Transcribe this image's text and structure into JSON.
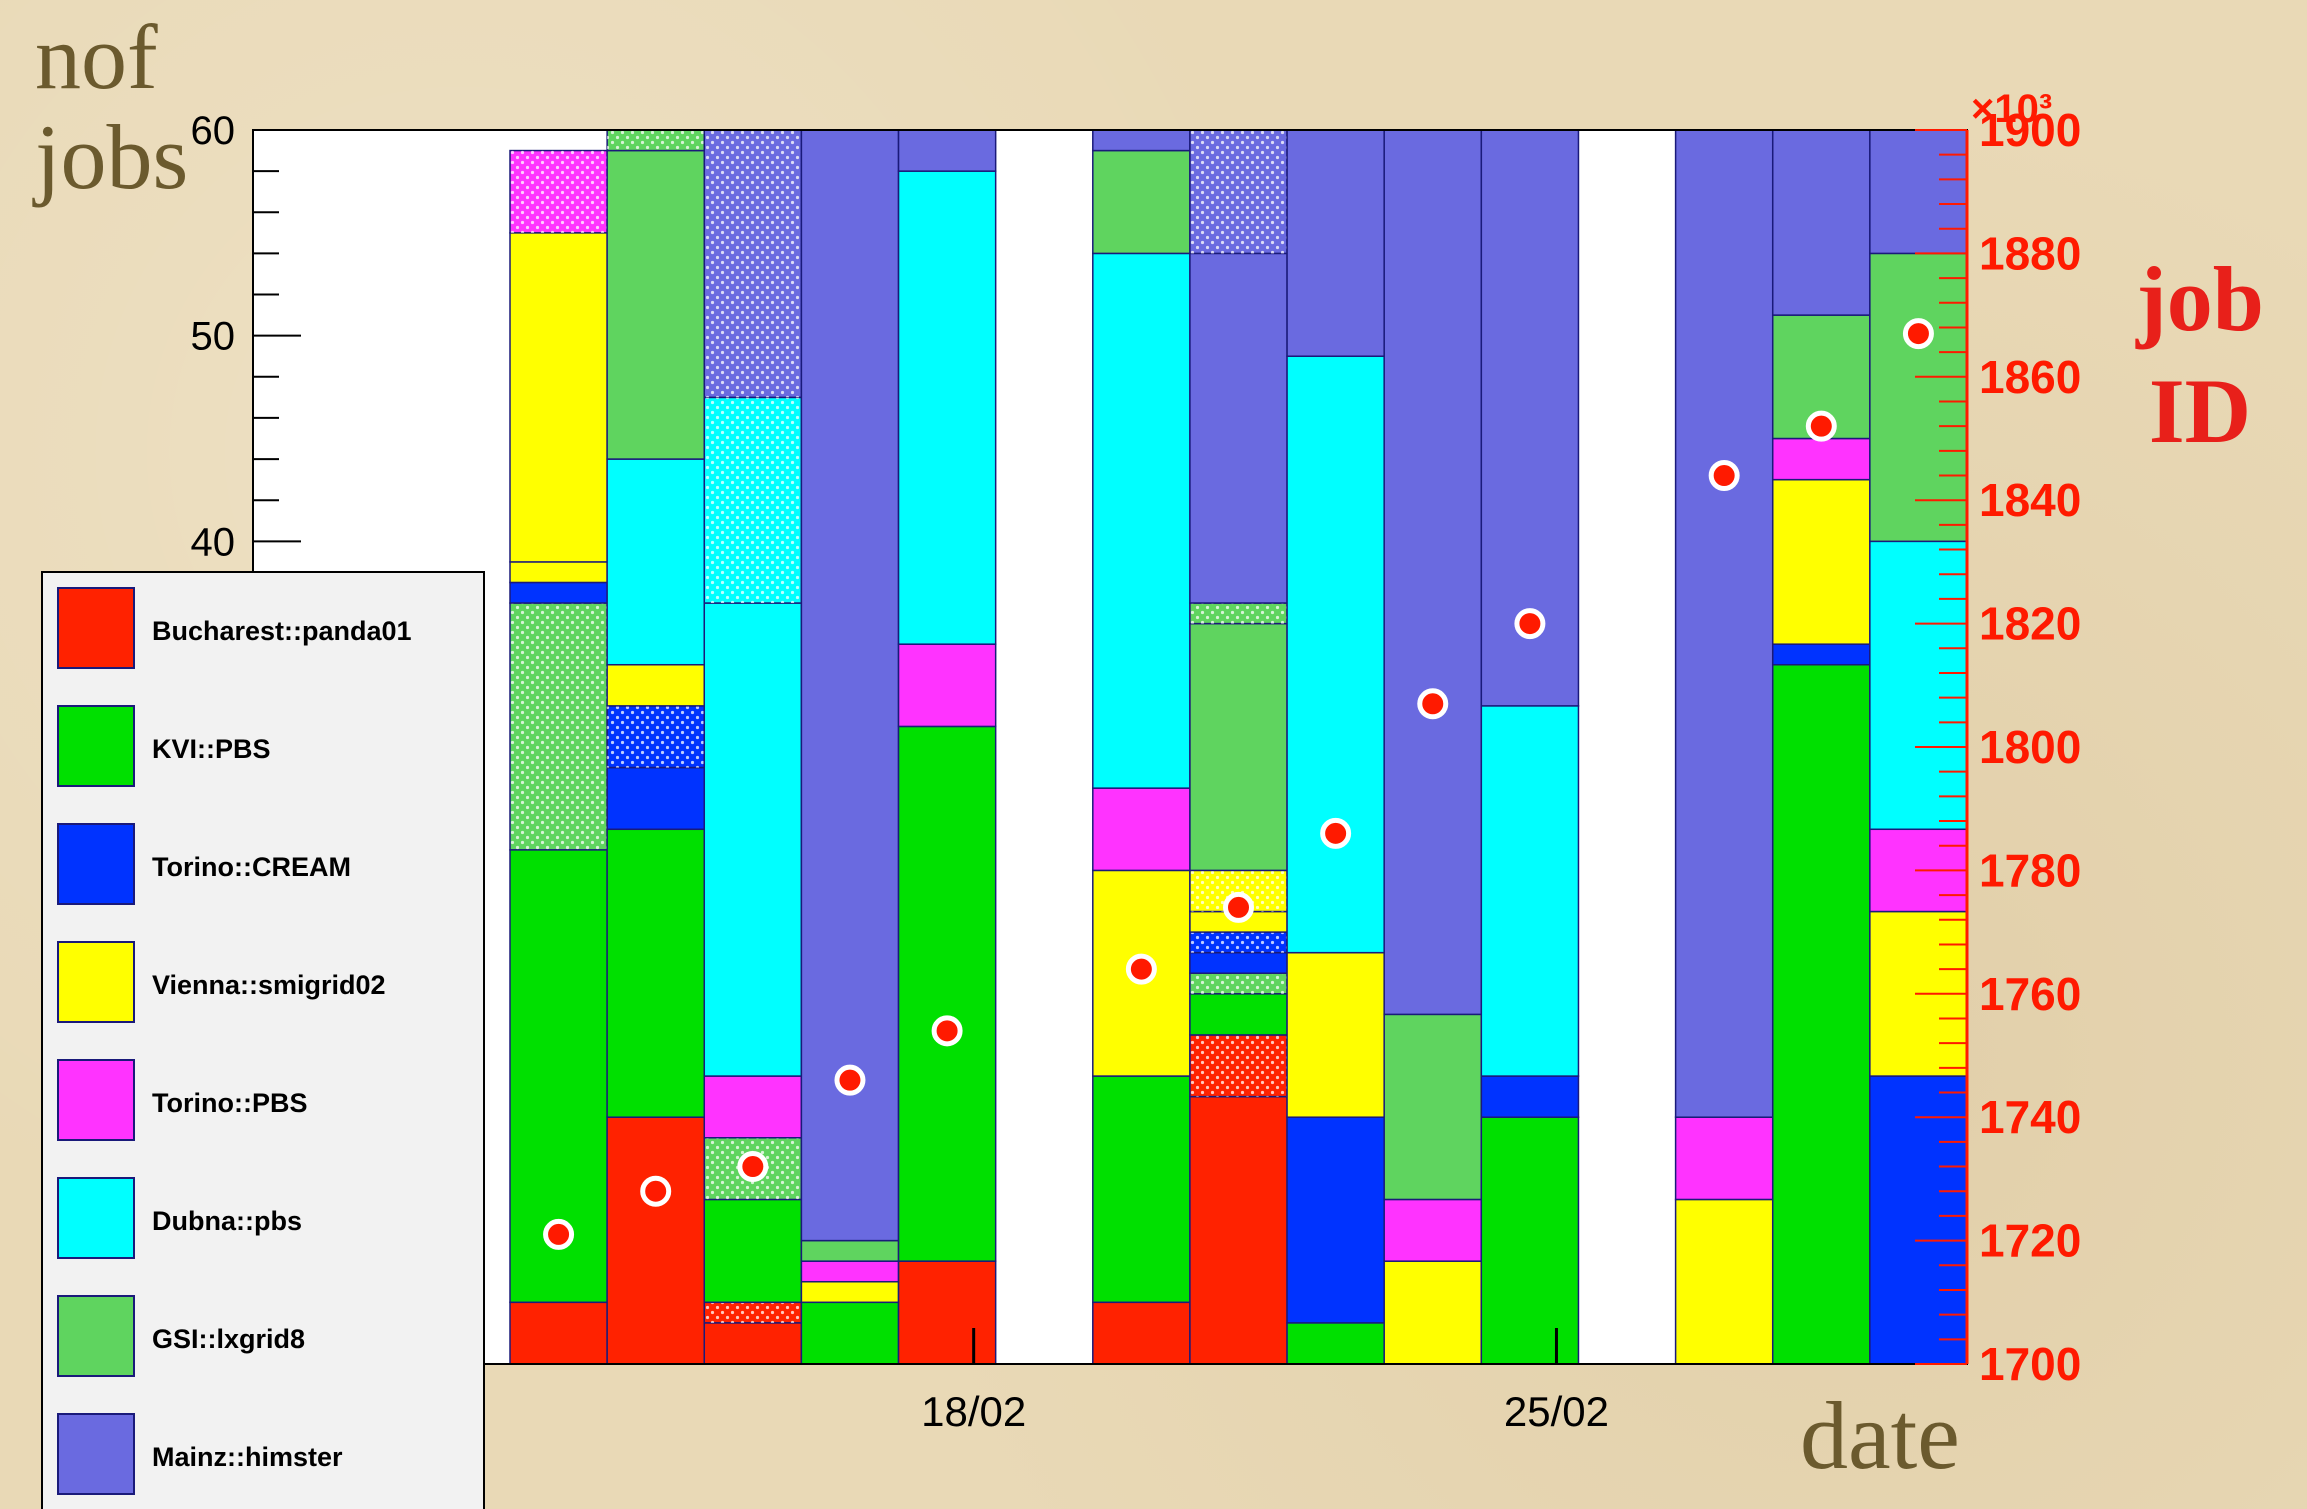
{
  "chart_data": {
    "type": "bar",
    "stacked": true,
    "ylabel": "nof\njobs",
    "xlabel": "date",
    "y2label": "job\nID",
    "y2exponent": "×10³",
    "ylim": [
      0,
      60
    ],
    "y2lim": [
      1700,
      1900
    ],
    "yticks": [
      "40",
      "50",
      "60"
    ],
    "y2ticks": [
      "1700",
      "1720",
      "1740",
      "1760",
      "1780",
      "1800",
      "1820",
      "1840",
      "1860",
      "1880",
      "1900"
    ],
    "xticks": [
      "18/02",
      "25/02"
    ],
    "legend_position": "bottom-left",
    "bins": [
      {
        "segments": [
          [
            "Bucharest::panda01",
            3
          ],
          [
            "KVI::PBS",
            22
          ],
          [
            "GSI::lxgrid8",
            12
          ],
          [
            "Torino::CREAM",
            1
          ],
          [
            "Vienna::smigrid02",
            1
          ],
          [
            "Vienna::smigrid02",
            16
          ],
          [
            "Torino::PBS",
            4
          ]
        ],
        "jobid": 1721
      },
      {
        "segments": [
          [
            "Bucharest::panda01",
            12
          ],
          [
            "KVI::PBS",
            14
          ],
          [
            "Torino::CREAM",
            3
          ],
          [
            "Torino::CREAM",
            3
          ],
          [
            "Vienna::smigrid02",
            2
          ],
          [
            "Dubna::pbs",
            10
          ],
          [
            "GSI::lxgrid8",
            15
          ],
          [
            "GSI::lxgrid8",
            1
          ]
        ],
        "jobid": 1728
      },
      {
        "segments": [
          [
            "Bucharest::panda01",
            2
          ],
          [
            "Bucharest::panda01",
            1
          ],
          [
            "KVI::PBS",
            5
          ],
          [
            "GSI::lxgrid8",
            3
          ],
          [
            "Torino::PBS",
            3
          ],
          [
            "Dubna::pbs",
            23
          ],
          [
            "Dubna::pbs",
            10
          ],
          [
            "Mainz::himster",
            13
          ]
        ],
        "jobid": 1732
      },
      {
        "segments": [
          [
            "KVI::PBS",
            3
          ],
          [
            "Vienna::smigrid02",
            1
          ],
          [
            "Torino::PBS",
            1
          ],
          [
            "GSI::lxgrid8",
            1
          ],
          [
            "Mainz::himster",
            54
          ]
        ],
        "jobid": 1746
      },
      {
        "segments": [
          [
            "Bucharest::panda01",
            5
          ],
          [
            "KVI::PBS",
            26
          ],
          [
            "Torino::PBS",
            4
          ],
          [
            "Dubna::pbs",
            23
          ],
          [
            "Mainz::himster",
            2
          ]
        ],
        "jobid": 1754
      },
      {
        "segments": [],
        "jobid": null
      },
      {
        "segments": [
          [
            "Bucharest::panda01",
            3
          ],
          [
            "KVI::PBS",
            11
          ],
          [
            "Vienna::smigrid02",
            10
          ],
          [
            "Torino::PBS",
            4
          ],
          [
            "Dubna::pbs",
            26
          ],
          [
            "GSI::lxgrid8",
            5
          ],
          [
            "Mainz::himster",
            1
          ]
        ],
        "jobid": 1764
      },
      {
        "segments": [
          [
            "Bucharest::panda01",
            13
          ],
          [
            "Bucharest::panda01",
            3
          ],
          [
            "KVI::PBS",
            2
          ],
          [
            "GSI::lxgrid8",
            1
          ],
          [
            "Torino::CREAM",
            1
          ],
          [
            "Torino::CREAM",
            1
          ],
          [
            "Vienna::smigrid02",
            1
          ],
          [
            "Vienna::smigrid02",
            2
          ],
          [
            "GSI::lxgrid8",
            12
          ],
          [
            "GSI::lxgrid8",
            1
          ],
          [
            "Mainz::himster",
            17
          ],
          [
            "Mainz::himster",
            6
          ]
        ],
        "jobid": 1774
      },
      {
        "segments": [
          [
            "KVI::PBS",
            2
          ],
          [
            "Torino::CREAM",
            10
          ],
          [
            "Vienna::smigrid02",
            8
          ],
          [
            "Dubna::pbs",
            29
          ],
          [
            "Mainz::himster",
            11
          ]
        ],
        "jobid": 1786
      },
      {
        "segments": [
          [
            "Vienna::smigrid02",
            5
          ],
          [
            "Torino::PBS",
            3
          ],
          [
            "GSI::lxgrid8",
            9
          ],
          [
            "Mainz::himster",
            43
          ]
        ],
        "jobid": 1807
      },
      {
        "segments": [
          [
            "KVI::PBS",
            12
          ],
          [
            "Torino::CREAM",
            2
          ],
          [
            "Dubna::pbs",
            18
          ],
          [
            "Mainz::himster",
            28
          ]
        ],
        "jobid": 1820
      },
      {
        "segments": [],
        "jobid": null
      },
      {
        "segments": [
          [
            "Vienna::smigrid02",
            8
          ],
          [
            "Torino::PBS",
            4
          ],
          [
            "Mainz::himster",
            48
          ]
        ],
        "jobid": 1844
      },
      {
        "segments": [
          [
            "KVI::PBS",
            34
          ],
          [
            "Torino::CREAM",
            1
          ],
          [
            "Vienna::smigrid02",
            8
          ],
          [
            "Torino::PBS",
            2
          ],
          [
            "GSI::lxgrid8",
            6
          ],
          [
            "Mainz::himster",
            9
          ]
        ],
        "jobid": 1852
      },
      {
        "segments": [
          [
            "Torino::CREAM",
            14
          ],
          [
            "Vienna::smigrid02",
            8
          ],
          [
            "Torino::PBS",
            4
          ],
          [
            "Dubna::pbs",
            14
          ],
          [
            "GSI::lxgrid8",
            14
          ],
          [
            "Mainz::himster",
            6
          ]
        ],
        "jobid": 1867
      }
    ],
    "hatched": [
      [
        0,
        2
      ],
      [
        0,
        6
      ],
      [
        1,
        3
      ],
      [
        1,
        7
      ],
      [
        2,
        1
      ],
      [
        2,
        3
      ],
      [
        2,
        6
      ],
      [
        2,
        7
      ],
      [
        7,
        1
      ],
      [
        7,
        3
      ],
      [
        7,
        5
      ],
      [
        7,
        7
      ],
      [
        7,
        9
      ],
      [
        7,
        11
      ]
    ],
    "series": [
      {
        "name": "Bucharest::panda01",
        "color": "#ff2200"
      },
      {
        "name": "KVI::PBS",
        "color": "#00e000"
      },
      {
        "name": "Torino::CREAM",
        "color": "#0033ff"
      },
      {
        "name": "Vienna::smigrid02",
        "color": "#ffff00"
      },
      {
        "name": "Torino::PBS",
        "color": "#ff33ff"
      },
      {
        "name": "Dubna::pbs",
        "color": "#00ffff"
      },
      {
        "name": "GSI::lxgrid8",
        "color": "#5fd45f"
      },
      {
        "name": "Mainz::himster",
        "color": "#6a6ae0"
      }
    ]
  }
}
